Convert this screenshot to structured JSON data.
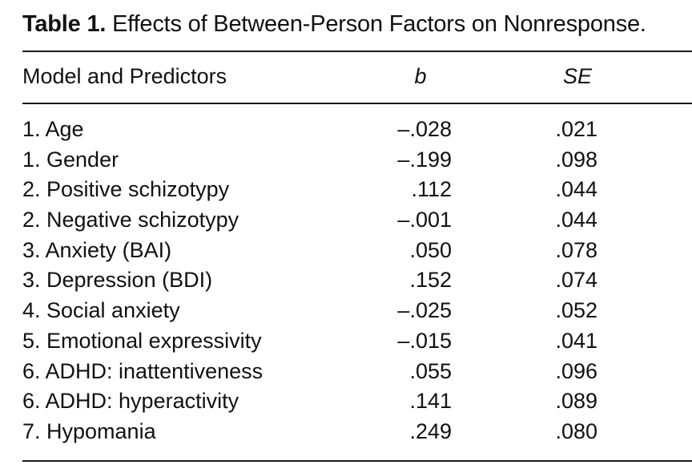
{
  "caption": {
    "label": "Table 1.",
    "title": "Effects of Between-Person Factors on Nonresponse."
  },
  "headers": {
    "predictor": "Model and Predictors",
    "b": "b",
    "se": "SE"
  },
  "rows": [
    {
      "predictor": "1. Age",
      "b": "–.028",
      "se": ".021"
    },
    {
      "predictor": "1. Gender",
      "b": "–.199",
      "se": ".098"
    },
    {
      "predictor": "2. Positive schizotypy",
      "b": ".112",
      "se": ".044"
    },
    {
      "predictor": "2. Negative schizotypy",
      "b": "–.001",
      "se": ".044"
    },
    {
      "predictor": "3. Anxiety (BAI)",
      "b": ".050",
      "se": ".078"
    },
    {
      "predictor": "3. Depression (BDI)",
      "b": ".152",
      "se": ".074"
    },
    {
      "predictor": "4. Social anxiety",
      "b": "–.025",
      "se": ".052"
    },
    {
      "predictor": "5. Emotional expressivity",
      "b": "–.015",
      "se": ".041"
    },
    {
      "predictor": "6. ADHD: inattentiveness",
      "b": ".055",
      "se": ".096"
    },
    {
      "predictor": "6. ADHD: hyperactivity",
      "b": ".141",
      "se": ".089"
    },
    {
      "predictor": "7. Hypomania",
      "b": ".249",
      "se": ".080"
    }
  ]
}
